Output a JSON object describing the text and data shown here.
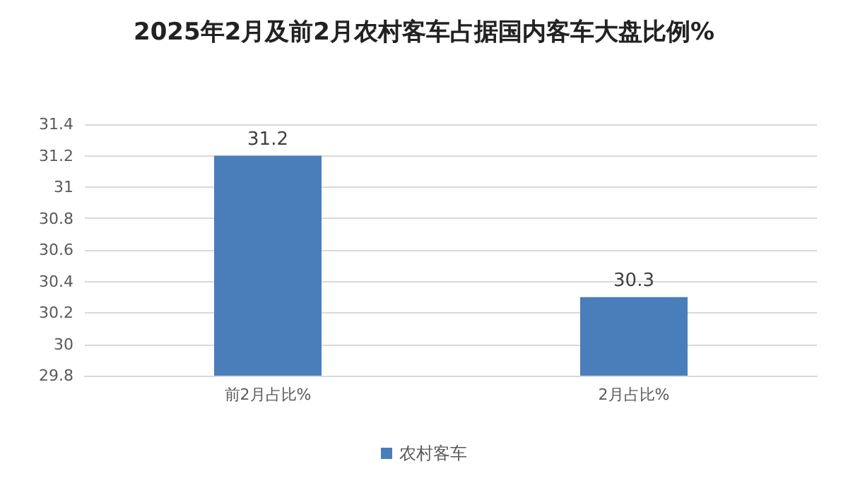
{
  "chart_data": {
    "type": "bar",
    "title": "2025年2月及前2月农村客车占据国内客车大盘比例%",
    "categories": [
      "前2月占比%",
      "2月占比%"
    ],
    "series": [
      {
        "name": "农村客车",
        "color": "#4a7ebb",
        "values": [
          31.2,
          30.3
        ]
      }
    ],
    "ylim": [
      29.8,
      31.4
    ],
    "yticks": [
      29.8,
      30,
      30.2,
      30.4,
      30.6,
      30.8,
      31,
      31.2,
      31.4
    ],
    "grid": "y",
    "legend": "bottom",
    "data_labels": true
  }
}
